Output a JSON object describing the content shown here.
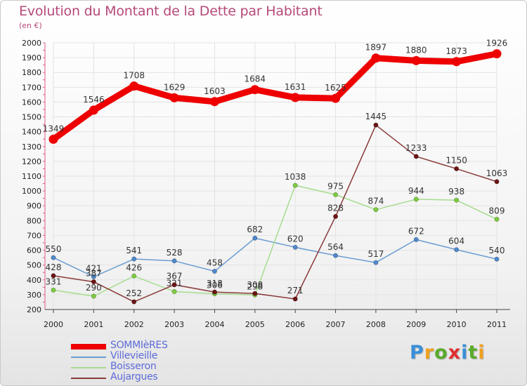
{
  "chart_data": {
    "type": "line",
    "title": "Evolution du Montant de la Dette par Habitant",
    "subtitle": "(en €)",
    "xlabel": "",
    "ylabel": "",
    "ylim": [
      200,
      2000
    ],
    "yticks": [
      200,
      300,
      400,
      500,
      600,
      700,
      800,
      900,
      1000,
      1100,
      1200,
      1300,
      1400,
      1500,
      1600,
      1700,
      1800,
      1900,
      2000
    ],
    "x": [
      "2000",
      "2001",
      "2002",
      "2003",
      "2004",
      "2005",
      "2006",
      "2007",
      "2008",
      "2009",
      "2010",
      "2011"
    ],
    "grid": true,
    "series": [
      {
        "name": "SOMMIèRES",
        "color": "#ee0000",
        "marker": "#ee0000",
        "emphasis": true,
        "values": [
          1349,
          1546,
          1708,
          1629,
          1603,
          1684,
          1631,
          1625,
          1897,
          1880,
          1873,
          1926
        ]
      },
      {
        "name": "Villevieille",
        "color": "#6b9dd1",
        "marker": "#4f88cc",
        "emphasis": false,
        "values": [
          550,
          421,
          541,
          528,
          458,
          682,
          620,
          564,
          517,
          672,
          604,
          540
        ]
      },
      {
        "name": "Boisseron",
        "color": "#a6dc8e",
        "marker": "#7ccc3d",
        "emphasis": false,
        "values": [
          331,
          290,
          426,
          321,
          306,
          298,
          1038,
          975,
          874,
          944,
          938,
          809
        ]
      },
      {
        "name": "Aujargues",
        "color": "#8a3a3a",
        "marker": "#6b1414",
        "emphasis": false,
        "values": [
          428,
          387,
          252,
          367,
          318,
          308,
          271,
          828,
          1445,
          1233,
          1150,
          1063
        ]
      }
    ],
    "legend_position": "bottom-left"
  },
  "logo": {
    "letters": [
      "P",
      "r",
      "o",
      "x",
      "i",
      "t",
      "i"
    ],
    "colors": [
      "#3c8fd8",
      "#f0a020",
      "#5aaa2a",
      "#e03030",
      "#3c8fd8",
      "#5aaa2a",
      "#f0a020"
    ]
  }
}
